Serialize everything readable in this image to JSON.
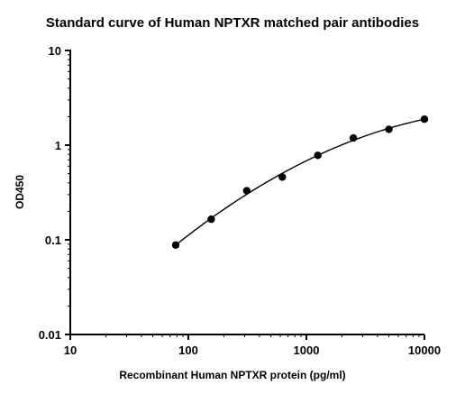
{
  "chart_data": {
    "type": "scatter",
    "title": "Standard curve of Human NPTXR matched pair antibodies",
    "xlabel": "Recombinant Human NPTXR protein (pg/ml)",
    "ylabel": "OD450",
    "xscale": "log",
    "yscale": "log",
    "xlim": [
      10,
      10000
    ],
    "ylim": [
      0.01,
      10
    ],
    "x_ticks": [
      10,
      100,
      1000,
      10000
    ],
    "x_tick_labels": [
      "10",
      "100",
      "1000",
      "10000"
    ],
    "y_ticks": [
      0.01,
      0.1,
      1,
      10
    ],
    "y_tick_labels": [
      "0.01",
      "0.1",
      "1",
      "10"
    ],
    "grid": false,
    "legend": "none",
    "marker_color": "#000000",
    "series": [
      {
        "x": [
          78.125,
          156.25,
          312.5,
          625,
          1250,
          2500,
          5000,
          10000
        ],
        "y": [
          0.088,
          0.165,
          0.33,
          0.46,
          0.78,
          1.19,
          1.47,
          1.88
        ],
        "fit_curve": true
      }
    ]
  }
}
